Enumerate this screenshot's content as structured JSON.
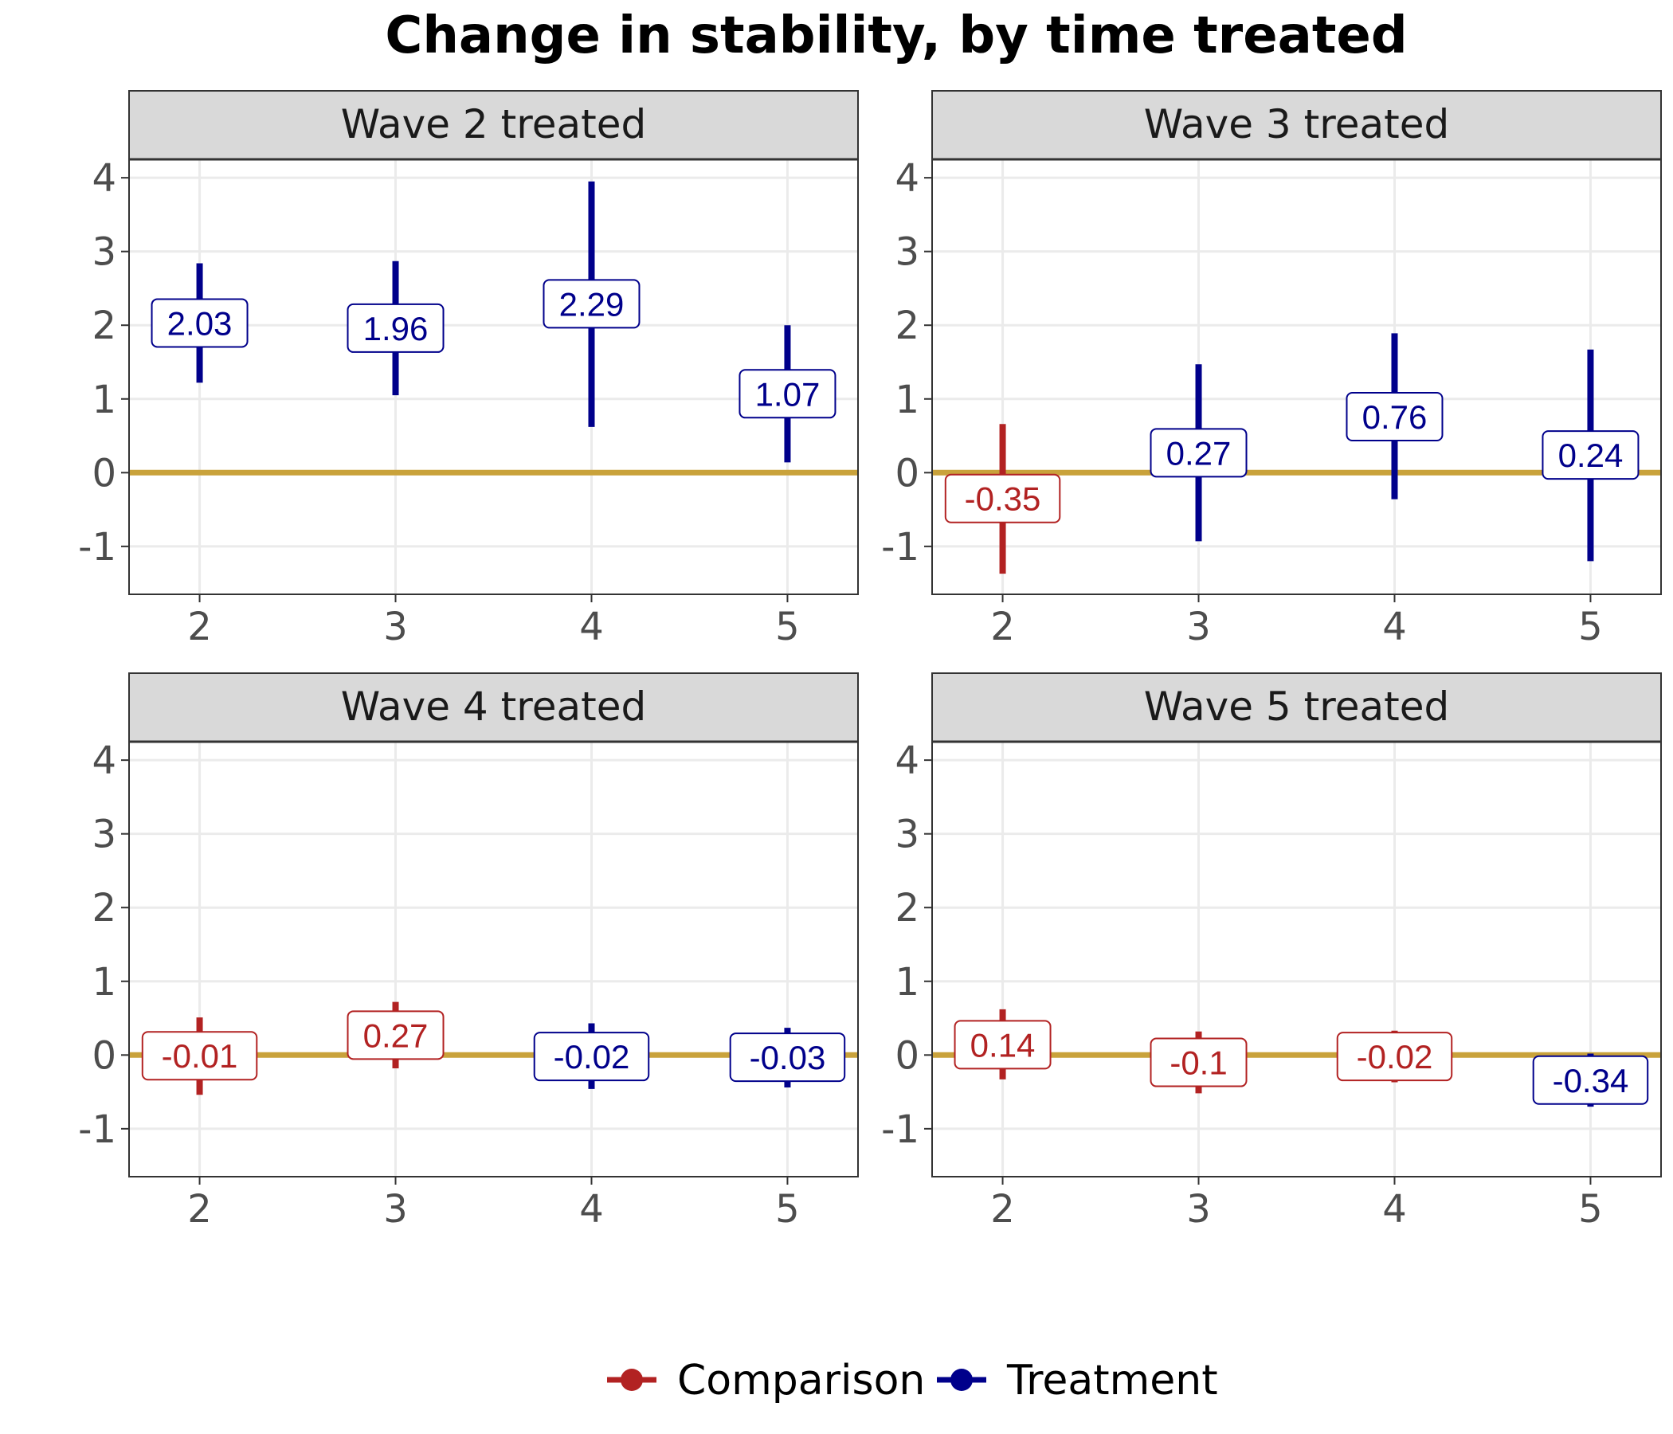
{
  "chart_data": {
    "type": "errorbar",
    "title": "Change in stability, by time treated",
    "xlabel": "",
    "ylabel": "",
    "x_ticks": [
      2,
      3,
      4,
      5
    ],
    "y_ticks": [
      4,
      3,
      2,
      1,
      0,
      -1
    ],
    "ylim": [
      -1.65,
      4.25
    ],
    "xlim": [
      1.64,
      5.36
    ],
    "reference_line": 0,
    "grid": true,
    "legend_position": "bottom",
    "colors": {
      "Comparison": "#b22222",
      "Treatment": "#00008b",
      "reference_line": "#c9a23b"
    },
    "series": [
      {
        "name": "Comparison"
      },
      {
        "name": "Treatment"
      }
    ],
    "panels": [
      {
        "title": "Wave 2 treated",
        "points": [
          {
            "x": 2,
            "y": 2.03,
            "low": 1.22,
            "high": 2.84,
            "group": "Treatment"
          },
          {
            "x": 3,
            "y": 1.96,
            "low": 1.05,
            "high": 2.87,
            "group": "Treatment"
          },
          {
            "x": 4,
            "y": 2.29,
            "low": 0.62,
            "high": 3.95,
            "group": "Treatment"
          },
          {
            "x": 5,
            "y": 1.07,
            "low": 0.14,
            "high": 2.0,
            "group": "Treatment"
          }
        ]
      },
      {
        "title": "Wave 3 treated",
        "points": [
          {
            "x": 2,
            "y": -0.35,
            "low": -1.37,
            "high": 0.66,
            "group": "Comparison"
          },
          {
            "x": 3,
            "y": 0.27,
            "low": -0.93,
            "high": 1.47,
            "group": "Treatment"
          },
          {
            "x": 4,
            "y": 0.76,
            "low": -0.36,
            "high": 1.89,
            "group": "Treatment"
          },
          {
            "x": 5,
            "y": 0.24,
            "low": -1.2,
            "high": 1.67,
            "group": "Treatment"
          }
        ]
      },
      {
        "title": "Wave 4 treated",
        "points": [
          {
            "x": 2,
            "y": -0.01,
            "low": -0.54,
            "high": 0.51,
            "group": "Comparison"
          },
          {
            "x": 3,
            "y": 0.27,
            "low": -0.18,
            "high": 0.72,
            "group": "Comparison"
          },
          {
            "x": 4,
            "y": -0.02,
            "low": -0.46,
            "high": 0.43,
            "group": "Treatment"
          },
          {
            "x": 5,
            "y": -0.03,
            "low": -0.44,
            "high": 0.37,
            "group": "Treatment"
          }
        ]
      },
      {
        "title": "Wave 5 treated",
        "points": [
          {
            "x": 2,
            "y": 0.14,
            "low": -0.33,
            "high": 0.62,
            "group": "Comparison"
          },
          {
            "x": 3,
            "y": -0.1,
            "low": -0.52,
            "high": 0.32,
            "group": "Comparison"
          },
          {
            "x": 4,
            "y": -0.02,
            "low": -0.37,
            "high": 0.33,
            "group": "Comparison"
          },
          {
            "x": 5,
            "y": -0.34,
            "low": -0.7,
            "high": 0.02,
            "group": "Treatment"
          }
        ]
      }
    ]
  }
}
